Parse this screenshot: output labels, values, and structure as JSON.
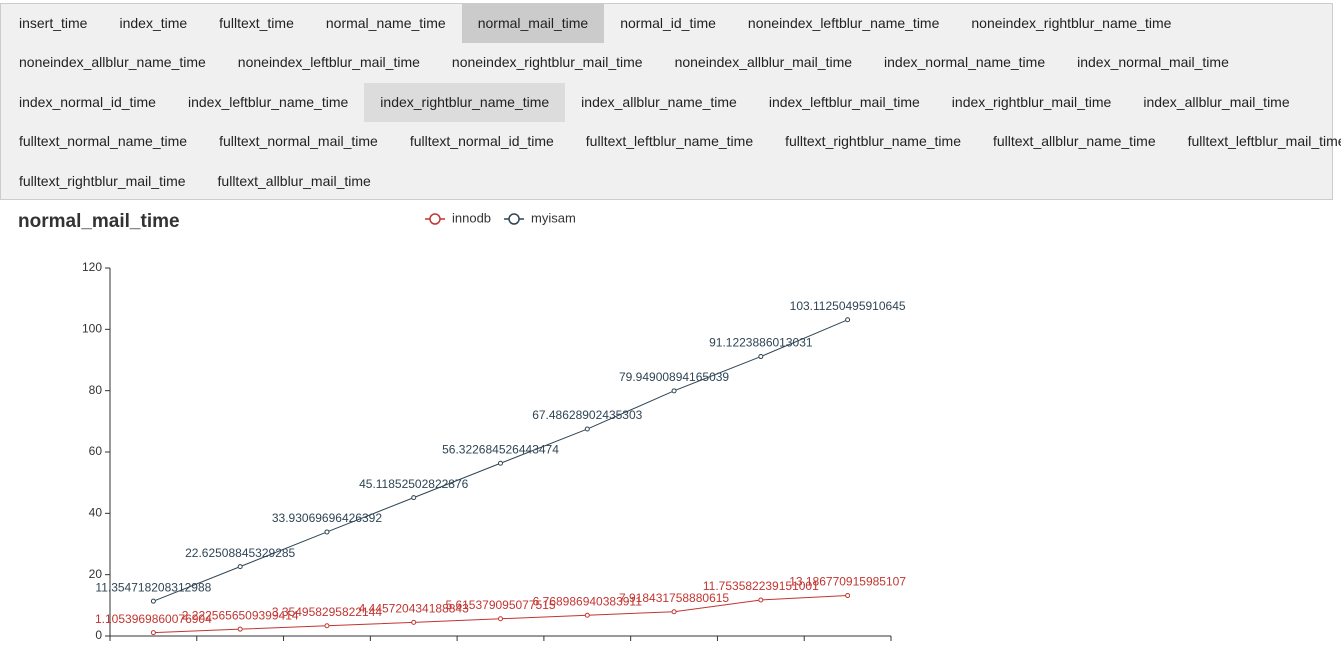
{
  "tabs": {
    "rows": [
      [
        {
          "label": "insert_time"
        },
        {
          "label": "index_time"
        },
        {
          "label": "fulltext_time"
        },
        {
          "label": "normal_name_time"
        },
        {
          "label": "normal_mail_time",
          "selected": true
        },
        {
          "label": "normal_id_time"
        },
        {
          "label": "noneindex_leftblur_name_time"
        },
        {
          "label": "noneindex_rightblur_name_time"
        }
      ],
      [
        {
          "label": "noneindex_allblur_name_time"
        },
        {
          "label": "noneindex_leftblur_mail_time"
        },
        {
          "label": "noneindex_rightblur_mail_time"
        },
        {
          "label": "noneindex_allblur_mail_time"
        },
        {
          "label": "index_normal_name_time"
        },
        {
          "label": "index_normal_mail_time"
        }
      ],
      [
        {
          "label": "index_normal_id_time"
        },
        {
          "label": "index_leftblur_name_time"
        },
        {
          "label": "index_rightblur_name_time",
          "hovered": true
        },
        {
          "label": "index_allblur_name_time"
        },
        {
          "label": "index_leftblur_mail_time"
        },
        {
          "label": "index_rightblur_mail_time"
        },
        {
          "label": "index_allblur_mail_time"
        }
      ],
      [
        {
          "label": "fulltext_normal_name_time"
        },
        {
          "label": "fulltext_normal_mail_time"
        },
        {
          "label": "fulltext_normal_id_time"
        },
        {
          "label": "fulltext_leftblur_name_time"
        },
        {
          "label": "fulltext_rightblur_name_time"
        },
        {
          "label": "fulltext_allblur_name_time"
        },
        {
          "label": "fulltext_leftblur_mail_time"
        }
      ],
      [
        {
          "label": "fulltext_rightblur_mail_time"
        },
        {
          "label": "fulltext_allblur_mail_time"
        }
      ]
    ]
  },
  "chart_data": {
    "type": "line",
    "title": "normal_mail_time",
    "categories": [
      null,
      null,
      null,
      null,
      null,
      null,
      null,
      null,
      null
    ],
    "series": [
      {
        "name": "innodb",
        "color": "#c23531",
        "values": [
          1.1053969860076904,
          2.2225656509399414,
          3.354958295822144,
          4.445720434188843,
          5.615379095077515,
          6.768986940383911,
          7.918431758880615,
          11.753582239151001,
          13.186770915985107
        ]
      },
      {
        "name": "myisam",
        "color": "#2f4554",
        "values": [
          11.354718208312988,
          22.62508845329285,
          33.93069696426392,
          45.11852502822876,
          56.322684526443474,
          67.48628902435303,
          79.94900894165039,
          91.1223886013031,
          103.11250495910645
        ]
      }
    ],
    "ylim": [
      0,
      120
    ],
    "yticks": [
      0,
      20,
      40,
      60,
      80,
      100,
      120
    ],
    "show_value_labels": true
  }
}
